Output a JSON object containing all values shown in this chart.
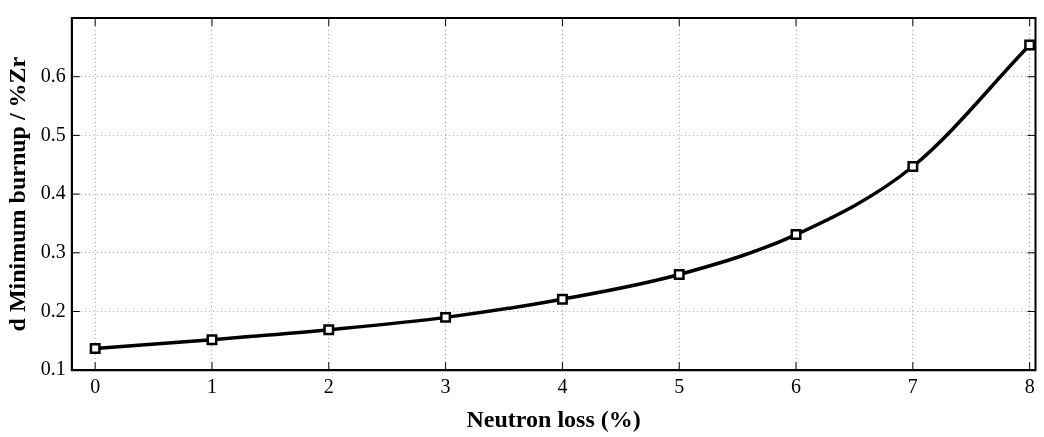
{
  "chart_data": {
    "type": "line",
    "xlabel": "Neutron loss (%)",
    "ylabel": "d Minimum burnup / %Zr",
    "x": [
      0,
      1,
      2,
      3,
      4,
      5,
      6,
      7,
      8
    ],
    "series": [
      {
        "color": "#000000",
        "values": [
          0.137,
          0.152,
          0.169,
          0.19,
          0.221,
          0.263,
          0.331,
          0.447,
          0.654
        ]
      }
    ],
    "xlim": [
      -0.2,
      8.05
    ],
    "xticks": [
      0,
      1,
      2,
      3,
      4,
      5,
      6,
      7,
      8
    ],
    "ylim": [
      0.1,
      0.7
    ],
    "yticks": [
      0.1,
      0.2,
      0.3,
      0.4,
      0.5,
      0.6
    ],
    "grid": true,
    "legend": false,
    "marker": "square",
    "line_style": "solid"
  }
}
